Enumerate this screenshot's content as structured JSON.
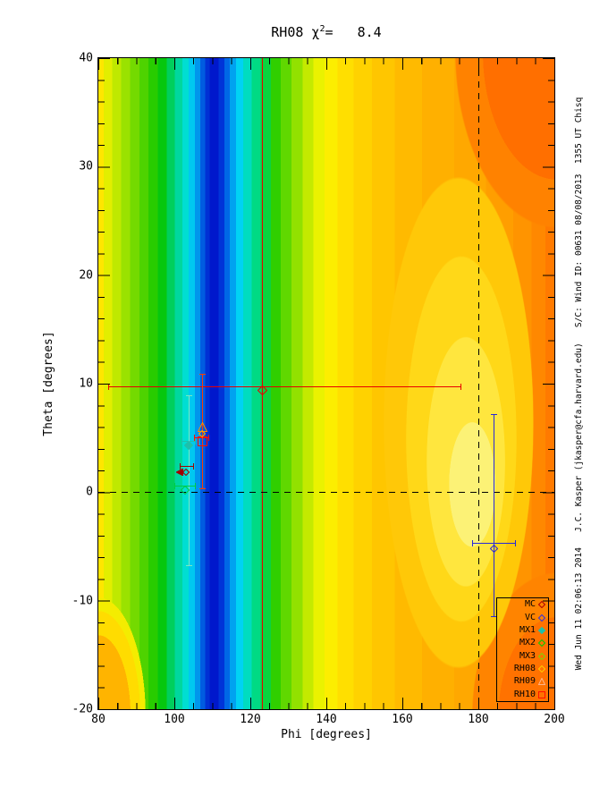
{
  "page": {
    "title": {
      "prefix": "RH08 χ",
      "sup": "2",
      "suffix": "=   8.4"
    },
    "sidebar_note": "Wed Jun 11 02:06:13 2014   J.C. Kasper (jkasper@cfa.harvard.edu)   S/C: Wind ID: 00631 08/08/2013  1355 UT Chisq"
  },
  "chart_data": {
    "type": "heatmap",
    "title": "RH08 χ2= 8.4",
    "xlabel": "Phi [degrees]",
    "ylabel": "Theta [degrees]",
    "xlim": [
      80,
      200
    ],
    "ylim": [
      -20,
      40
    ],
    "x_major_ticks": [
      80,
      100,
      120,
      140,
      160,
      180,
      200
    ],
    "x_minor_step": 5,
    "y_major_ticks": [
      40,
      30,
      20,
      10,
      0,
      -10,
      -20
    ],
    "y_minor_step": 2,
    "grid": false,
    "legend_position": "bottom-right-inside",
    "surface": {
      "description": "Chi-squared contour surface over Phi/Theta. Deep-blue global minimum band centered near phi=108 running the full theta range; rainbow bands outward (cyan, green, yellow, orange); shallow yellow secondary minimum near phi=172, theta=-2; largest chi-squared (dark orange/red-orange) along the right edge near phi=200 and at top-right/bottom-right corners.",
      "blue_minimum_band_phi": 108,
      "secondary_minimum": {
        "phi": 172,
        "theta": -2
      }
    },
    "reference_lines": [
      {
        "name": "phi-fit",
        "orient": "v",
        "phi": 123.2,
        "style": "solid",
        "color": "#e80000"
      },
      {
        "name": "phi-180",
        "orient": "v",
        "phi": 180,
        "style": "dashed",
        "color": "#000000"
      },
      {
        "name": "theta-0",
        "orient": "h",
        "theta": 0,
        "style": "dashed",
        "color": "#000000"
      }
    ],
    "points": [
      {
        "name": "selected-fit",
        "shape": "diamond",
        "color": "#e80000",
        "size": 11,
        "phi": 123.2,
        "theta": 9.7,
        "xerr": [
          82.5,
          175.5
        ]
      },
      {
        "name": "RH10",
        "shape": "square",
        "color": "#ff1000",
        "size": 11,
        "phi": 107.5,
        "theta": 5.0,
        "xerr": [
          105.2,
          109.2
        ],
        "yerr": [
          0.3,
          10.9
        ],
        "yerr_color": "#ff3c00"
      },
      {
        "name": "RH09",
        "shape": "triangle",
        "color": "#ff8c00",
        "size": 11,
        "phi": 107.4,
        "theta": 6.3
      },
      {
        "name": "RH08",
        "shape": "diamond",
        "color": "#ffaa00",
        "size": 8,
        "phi": 107.4,
        "theta": 6.0
      },
      {
        "name": "MX1",
        "shape": "diamond",
        "color": "#1ec0aa",
        "size": 10,
        "fill": true,
        "phi": 103.8,
        "theta": 4.7,
        "xerr": [
          101.9,
          105.6
        ],
        "yerr": [
          -6.8,
          8.9
        ],
        "yerr_color": "#7de8c0"
      },
      {
        "name": "MC",
        "shape": "diamond",
        "color": "#a00000",
        "size": 8,
        "phi": 103.1,
        "theta": 2.4,
        "xerr": [
          101.4,
          105.2
        ]
      },
      {
        "name": "MC-offscale",
        "shape": "arrow-left",
        "color": "#a00000",
        "size": 8,
        "phi": 101.5,
        "theta": 2.4
      },
      {
        "name": "MX2",
        "shape": "diamond",
        "color": "#00cc44",
        "size": 10,
        "phi": 102.8,
        "theta": 0.6,
        "xerr": [
          100.0,
          105.6
        ]
      },
      {
        "name": "VC",
        "shape": "diamond",
        "color": "#2828d8",
        "size": 9,
        "phi": 184.2,
        "theta": -4.7,
        "xerr": [
          178.4,
          189.9
        ],
        "yerr": [
          -11.5,
          7.2
        ]
      }
    ]
  },
  "legend": {
    "entries": [
      {
        "label": "MC",
        "shape": "diamond",
        "color": "#b00000"
      },
      {
        "label": "VC",
        "shape": "diamond",
        "color": "#3232e0"
      },
      {
        "label": "MX1",
        "shape": "diamond",
        "color": "#1ec0aa",
        "fill": true
      },
      {
        "label": "MX2",
        "shape": "diamond",
        "color": "#00cc00"
      },
      {
        "label": "MX3",
        "shape": "diamond",
        "color": "#7fd400"
      },
      {
        "label": "RH08",
        "shape": "diamond",
        "color": "#ffc800"
      },
      {
        "label": "RH09",
        "shape": "triangle",
        "color": "#ffb488"
      },
      {
        "label": "RH10",
        "shape": "square",
        "color": "#ff1000"
      }
    ]
  }
}
